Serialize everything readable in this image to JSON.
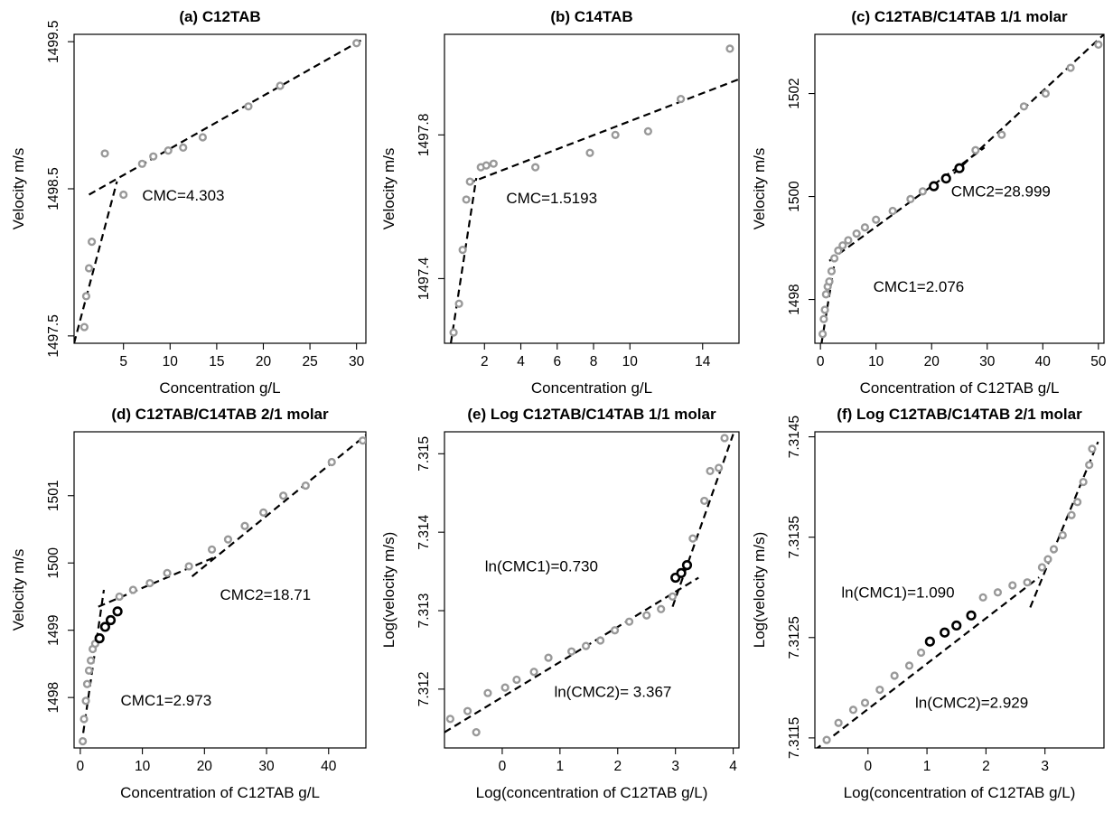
{
  "chart_data": [
    {
      "type": "scatter",
      "title": "(a) C12TAB",
      "xlabel": "Concentration g/L",
      "ylabel": "Velocity m/s",
      "xlim": [
        -0.3,
        31
      ],
      "ylim": [
        1497.45,
        1499.55
      ],
      "xticks": [
        5,
        10,
        15,
        20,
        25,
        30
      ],
      "yticks": [
        1497.5,
        1498.5,
        1499.5
      ],
      "series": [
        {
          "style": "gray",
          "x": [
            0.8,
            1.0,
            1.3,
            1.6,
            3.0,
            5.0,
            7.0,
            8.2,
            9.8,
            11.4,
            13.5,
            18.4,
            21.8,
            30.0
          ],
          "y": [
            1497.56,
            1497.77,
            1497.96,
            1498.14,
            1498.74,
            1498.46,
            1498.67,
            1498.72,
            1498.76,
            1498.78,
            1498.85,
            1499.06,
            1499.2,
            1499.49
          ]
        }
      ],
      "fit_lines": [
        {
          "x": [
            -0.3,
            4.3
          ],
          "y": [
            1497.45,
            1498.55
          ]
        },
        {
          "x": [
            1.3,
            30.5
          ],
          "y": [
            1498.46,
            1499.51
          ]
        }
      ],
      "annotations": [
        {
          "text": "CMC=4.303",
          "x": 7.0,
          "y": 1498.42
        }
      ]
    },
    {
      "type": "scatter",
      "title": "(b) C14TAB",
      "xlabel": "Concentration g/L",
      "ylabel": "Velocity m/s",
      "xlim": [
        -0.2,
        16.0
      ],
      "ylim": [
        1497.22,
        1498.08
      ],
      "xticks": [
        2,
        4,
        6,
        8,
        10,
        14
      ],
      "yticks": [
        1497.4,
        1497.8
      ],
      "series": [
        {
          "style": "gray",
          "x": [
            0.3,
            0.6,
            0.8,
            1.0,
            1.2,
            1.8,
            2.1,
            2.5,
            4.8,
            7.8,
            9.2,
            11.0,
            12.8,
            15.5
          ],
          "y": [
            1497.25,
            1497.33,
            1497.48,
            1497.62,
            1497.67,
            1497.71,
            1497.715,
            1497.72,
            1497.71,
            1497.75,
            1497.8,
            1497.81,
            1497.9,
            1498.04
          ]
        }
      ],
      "fit_lines": [
        {
          "x": [
            0.15,
            1.55
          ],
          "y": [
            1497.22,
            1497.68
          ]
        },
        {
          "x": [
            1.1,
            16.0
          ],
          "y": [
            1497.665,
            1497.955
          ]
        }
      ],
      "annotations": [
        {
          "text": "CMC=1.5193",
          "x": 3.2,
          "y": 1497.61
        }
      ]
    },
    {
      "type": "scatter",
      "title": "(c) C12TAB/C14TAB 1/1 molar",
      "xlabel": "Concentration of C12TAB g/L",
      "ylabel": "Velocity m/s",
      "xlim": [
        -1.0,
        51.0
      ],
      "ylim": [
        1497.15,
        1503.15
      ],
      "xticks": [
        0,
        10,
        20,
        30,
        40,
        50
      ],
      "yticks": [
        1498,
        1500,
        1502
      ],
      "series": [
        {
          "style": "gray",
          "x": [
            0.4,
            0.6,
            0.8,
            1.0,
            1.3,
            1.6,
            2.0,
            2.5,
            3.2,
            4.0,
            5.0,
            6.5,
            8.0,
            10.0,
            13.0,
            16.2,
            18.4,
            27.9,
            32.6,
            36.6,
            40.5,
            45.0,
            50.0
          ],
          "y": [
            1497.33,
            1497.62,
            1497.8,
            1498.1,
            1498.25,
            1498.35,
            1498.55,
            1498.8,
            1498.95,
            1499.05,
            1499.15,
            1499.28,
            1499.4,
            1499.55,
            1499.72,
            1499.95,
            1500.1,
            1500.9,
            1501.2,
            1501.75,
            1502.0,
            1502.5,
            1502.95
          ]
        },
        {
          "style": "black",
          "x": [
            20.4,
            22.6,
            25.0
          ],
          "y": [
            1500.2,
            1500.35,
            1500.55
          ]
        }
      ],
      "fit_lines": [
        {
          "x": [
            0.2,
            2.7
          ],
          "y": [
            1497.15,
            1498.82
          ]
        },
        {
          "x": [
            1.6,
            29.5
          ],
          "y": [
            1498.75,
            1500.95
          ]
        },
        {
          "x": [
            24.0,
            51.0
          ],
          "y": [
            1500.45,
            1503.15
          ]
        }
      ],
      "annotations": [
        {
          "text": "CMC2=28.999",
          "x": 23.5,
          "y": 1500.0
        },
        {
          "text": "CMC1=2.076",
          "x": 9.5,
          "y": 1498.15
        }
      ]
    },
    {
      "type": "scatter",
      "title": "(d) C12TAB/C14TAB 2/1 molar",
      "xlabel": "Concentration of C12TAB g/L",
      "ylabel": "Velocity m/s",
      "xlim": [
        -1.0,
        46.0
      ],
      "ylim": [
        1497.25,
        1501.95
      ],
      "xticks": [
        0,
        10,
        20,
        30,
        40
      ],
      "yticks": [
        1498,
        1499,
        1500,
        1501
      ],
      "series": [
        {
          "style": "gray",
          "x": [
            0.4,
            0.6,
            0.9,
            1.1,
            1.4,
            1.7,
            2.0,
            2.4,
            6.3,
            8.5,
            11.2,
            14.0,
            17.5,
            21.2,
            23.8,
            26.5,
            29.5,
            32.7,
            36.3,
            40.5,
            45.5
          ],
          "y": [
            1497.35,
            1497.68,
            1497.95,
            1498.2,
            1498.4,
            1498.55,
            1498.72,
            1498.8,
            1499.5,
            1499.6,
            1499.7,
            1499.85,
            1499.95,
            1500.2,
            1500.35,
            1500.55,
            1500.75,
            1501.0,
            1501.15,
            1501.5,
            1501.82
          ]
        },
        {
          "style": "black",
          "x": [
            3.1,
            4.0,
            4.9,
            6.0
          ],
          "y": [
            1498.88,
            1499.05,
            1499.15,
            1499.28
          ]
        }
      ],
      "fit_lines": [
        {
          "x": [
            0.2,
            3.8
          ],
          "y": [
            1497.3,
            1499.6
          ]
        },
        {
          "x": [
            2.9,
            21.5
          ],
          "y": [
            1499.35,
            1500.08
          ]
        },
        {
          "x": [
            18.0,
            46.0
          ],
          "y": [
            1499.8,
            1501.9
          ]
        }
      ],
      "annotations": [
        {
          "text": "CMC2=18.71",
          "x": 22.5,
          "y": 1499.45
        },
        {
          "text": "CMC1=2.973",
          "x": 6.5,
          "y": 1497.88
        }
      ]
    },
    {
      "type": "scatter",
      "title": "(e) Log C12TAB/C14TAB 1/1 molar",
      "xlabel": "Log(concentration of C12TAB g/L)",
      "ylabel": "Log(velocity m/s)",
      "xlim": [
        -1.0,
        4.1
      ],
      "ylim": [
        7.31125,
        7.31528
      ],
      "xticks": [
        0,
        1,
        2,
        3,
        4
      ],
      "yticks": [
        7.312,
        7.313,
        7.314,
        7.315
      ],
      "series": [
        {
          "style": "gray",
          "x": [
            -0.9,
            -0.6,
            -0.45,
            -0.25,
            0.05,
            0.25,
            0.55,
            0.8,
            1.2,
            1.45,
            1.7,
            1.95,
            2.2,
            2.5,
            2.75,
            2.95,
            3.3,
            3.5,
            3.6,
            3.75,
            3.85
          ],
          "y": [
            7.31162,
            7.31172,
            7.31145,
            7.31195,
            7.31202,
            7.31212,
            7.31222,
            7.3124,
            7.31248,
            7.31255,
            7.31262,
            7.31275,
            7.31286,
            7.31294,
            7.31302,
            7.31318,
            7.31392,
            7.3144,
            7.31478,
            7.31482,
            7.3152
          ]
        },
        {
          "style": "black",
          "x": [
            3.0,
            3.1,
            3.2
          ],
          "y": [
            7.31342,
            7.31348,
            7.31358
          ]
        }
      ],
      "fit_lines": [
        {
          "x": [
            -1.0,
            3.4
          ],
          "y": [
            7.31145,
            7.31342
          ]
        },
        {
          "x": [
            2.95,
            4.0
          ],
          "y": [
            7.31305,
            7.31525
          ]
        }
      ],
      "annotations": [
        {
          "text": "ln(CMC1)=0.730",
          "x": -0.3,
          "y": 7.3135
        },
        {
          "text": "ln(CMC2)= 3.367",
          "x": 0.9,
          "y": 7.3119
        }
      ]
    },
    {
      "type": "scatter",
      "title": "(f) Log C12TAB/C14TAB 2/1 molar",
      "xlabel": "Log(concentration of C12TAB g/L)",
      "ylabel": "Log(velocity m/s)",
      "xlim": [
        -0.9,
        4.0
      ],
      "ylim": [
        7.3114,
        7.31455
      ],
      "xticks": [
        0,
        1,
        2,
        3
      ],
      "yticks": [
        7.3115,
        7.3125,
        7.3135,
        7.3145
      ],
      "series": [
        {
          "style": "gray",
          "x": [
            -0.7,
            -0.5,
            -0.25,
            -0.05,
            0.2,
            0.45,
            0.7,
            0.9,
            1.95,
            2.2,
            2.45,
            2.7,
            2.95,
            3.05,
            3.15,
            3.3,
            3.45,
            3.55,
            3.65,
            3.75,
            3.8
          ],
          "y": [
            7.31148,
            7.31165,
            7.31178,
            7.31185,
            7.31198,
            7.31212,
            7.31222,
            7.31235,
            7.3129,
            7.31295,
            7.31302,
            7.31305,
            7.3132,
            7.31328,
            7.31338,
            7.31352,
            7.31372,
            7.31385,
            7.31405,
            7.31422,
            7.31438
          ]
        },
        {
          "style": "black",
          "x": [
            1.05,
            1.3,
            1.5,
            1.75
          ],
          "y": [
            7.31246,
            7.31255,
            7.31262,
            7.31272
          ]
        }
      ],
      "fit_lines": [
        {
          "x": [
            -0.9,
            2.9
          ],
          "y": [
            7.31138,
            7.3131
          ]
        },
        {
          "x": [
            2.75,
            3.9
          ],
          "y": [
            7.3128,
            7.31445
          ]
        }
      ],
      "annotations": [
        {
          "text": "ln(CMC1)=1.090",
          "x": -0.45,
          "y": 7.3129
        },
        {
          "text": "ln(CMC2)=2.929",
          "x": 0.8,
          "y": 7.3118
        }
      ]
    }
  ]
}
